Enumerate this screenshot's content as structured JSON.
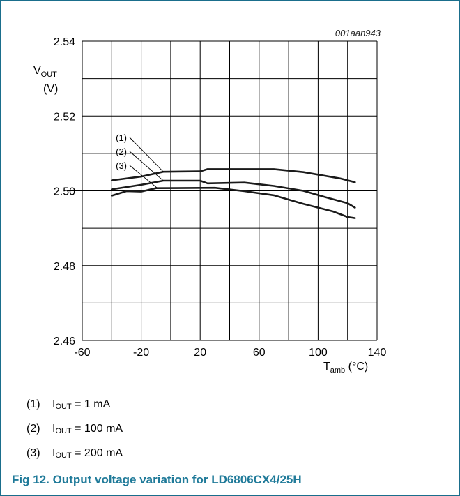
{
  "figure": {
    "tag": "001aan943",
    "caption": "Fig 12.   Output voltage variation for LD6806CX4/25H"
  },
  "legend": [
    {
      "marker": "(1)",
      "var": "I",
      "sub": "OUT",
      "rest": " = 1 mA"
    },
    {
      "marker": "(2)",
      "var": "I",
      "sub": "OUT",
      "rest": " = 100 mA"
    },
    {
      "marker": "(3)",
      "var": "I",
      "sub": "OUT",
      "rest": " = 200 mA"
    }
  ],
  "chart_data": {
    "type": "line",
    "title": "",
    "xlabel": {
      "main": "T",
      "sub": "amb",
      "unit": " (°C)"
    },
    "ylabel": {
      "main": "V",
      "sub": "OUT",
      "unit": "(V)"
    },
    "xlim": [
      -60,
      140
    ],
    "ylim": [
      2.46,
      2.54
    ],
    "x_ticks": [
      "-60",
      "-20",
      "20",
      "60",
      "100",
      "140"
    ],
    "y_ticks": [
      "2.46",
      "2.48",
      "2.50",
      "2.52",
      "2.54"
    ],
    "x_grid_step": 20,
    "y_grid_step": 0.01,
    "grid": true,
    "series": [
      {
        "name": "(1)",
        "points": [
          [
            -40,
            2.5028
          ],
          [
            -20,
            2.5038
          ],
          [
            -5,
            2.5051
          ],
          [
            20,
            2.5052
          ],
          [
            25,
            2.5058
          ],
          [
            70,
            2.5058
          ],
          [
            90,
            2.505
          ],
          [
            115,
            2.5033
          ],
          [
            125,
            2.5023
          ]
        ]
      },
      {
        "name": "(2)",
        "points": [
          [
            -40,
            2.5004
          ],
          [
            -20,
            2.5016
          ],
          [
            -5,
            2.5027
          ],
          [
            20,
            2.5027
          ],
          [
            25,
            2.502
          ],
          [
            50,
            2.5022
          ],
          [
            70,
            2.5013
          ],
          [
            90,
            2.5
          ],
          [
            105,
            2.4983
          ],
          [
            120,
            2.4967
          ],
          [
            125,
            2.4955
          ]
        ]
      },
      {
        "name": "(3)",
        "points": [
          [
            -40,
            2.4987
          ],
          [
            -30,
            2.4999
          ],
          [
            -20,
            2.4998
          ],
          [
            -10,
            2.5007
          ],
          [
            30,
            2.5008
          ],
          [
            50,
            2.4999
          ],
          [
            70,
            2.4988
          ],
          [
            90,
            2.4965
          ],
          [
            110,
            2.4945
          ],
          [
            120,
            2.493
          ],
          [
            125,
            2.4927
          ]
        ]
      }
    ]
  }
}
